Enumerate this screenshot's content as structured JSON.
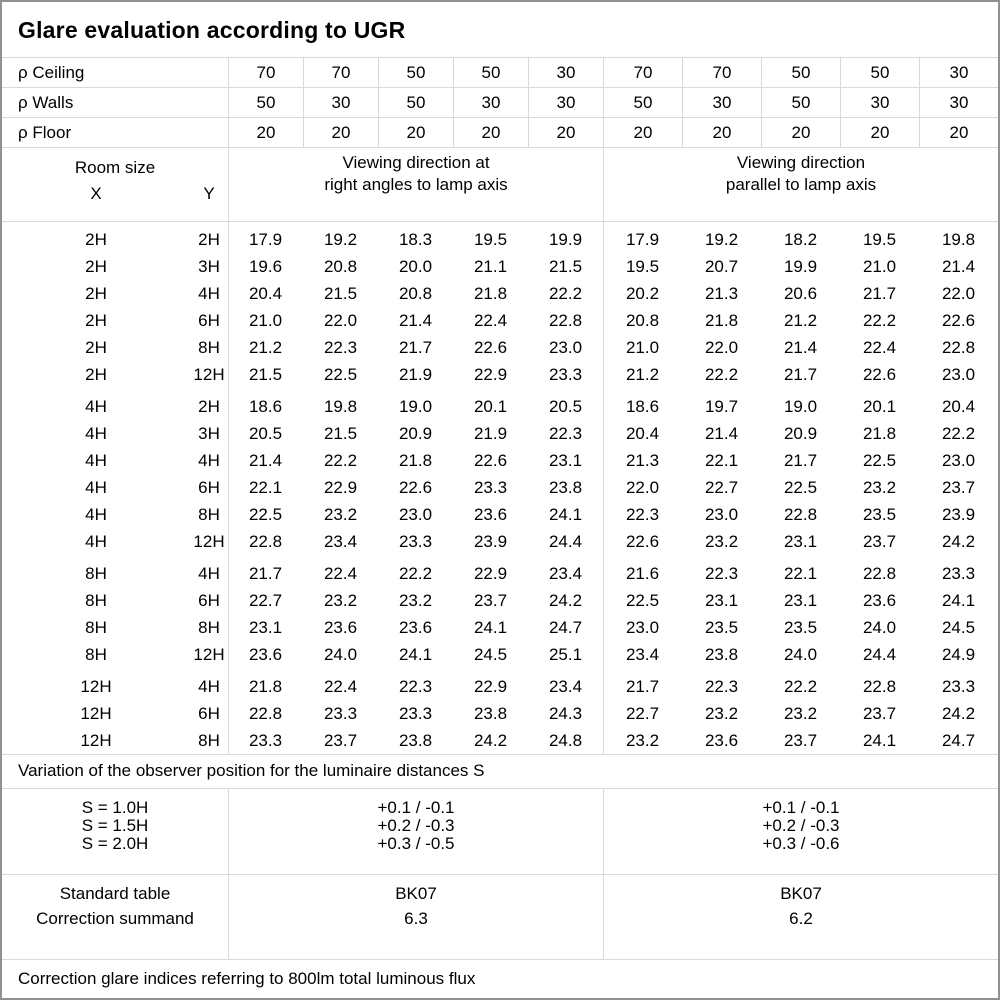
{
  "title": "Glare evaluation according to UGR",
  "reflectance_rows": [
    {
      "label": "ρ Ceiling",
      "values": [
        "70",
        "70",
        "50",
        "50",
        "30",
        "70",
        "70",
        "50",
        "50",
        "30"
      ]
    },
    {
      "label": "ρ Walls",
      "values": [
        "50",
        "30",
        "50",
        "30",
        "30",
        "50",
        "30",
        "50",
        "30",
        "30"
      ]
    },
    {
      "label": "ρ Floor",
      "values": [
        "20",
        "20",
        "20",
        "20",
        "20",
        "20",
        "20",
        "20",
        "20",
        "20"
      ]
    }
  ],
  "header": {
    "room_size_label": "Room size",
    "x_label": "X",
    "y_label": "Y",
    "right_angles_line1": "Viewing direction at",
    "right_angles_line2": "right angles to lamp axis",
    "parallel_line1": "Viewing direction",
    "parallel_line2": "parallel to lamp axis"
  },
  "ugr_groups": [
    {
      "rows": [
        {
          "x": "2H",
          "y": "2H",
          "values": [
            "17.9",
            "19.2",
            "18.3",
            "19.5",
            "19.9",
            "17.9",
            "19.2",
            "18.2",
            "19.5",
            "19.8"
          ]
        },
        {
          "x": "2H",
          "y": "3H",
          "values": [
            "19.6",
            "20.8",
            "20.0",
            "21.1",
            "21.5",
            "19.5",
            "20.7",
            "19.9",
            "21.0",
            "21.4"
          ]
        },
        {
          "x": "2H",
          "y": "4H",
          "values": [
            "20.4",
            "21.5",
            "20.8",
            "21.8",
            "22.2",
            "20.2",
            "21.3",
            "20.6",
            "21.7",
            "22.0"
          ]
        },
        {
          "x": "2H",
          "y": "6H",
          "values": [
            "21.0",
            "22.0",
            "21.4",
            "22.4",
            "22.8",
            "20.8",
            "21.8",
            "21.2",
            "22.2",
            "22.6"
          ]
        },
        {
          "x": "2H",
          "y": "8H",
          "values": [
            "21.2",
            "22.3",
            "21.7",
            "22.6",
            "23.0",
            "21.0",
            "22.0",
            "21.4",
            "22.4",
            "22.8"
          ]
        },
        {
          "x": "2H",
          "y": "12H",
          "values": [
            "21.5",
            "22.5",
            "21.9",
            "22.9",
            "23.3",
            "21.2",
            "22.2",
            "21.7",
            "22.6",
            "23.0"
          ]
        }
      ]
    },
    {
      "rows": [
        {
          "x": "4H",
          "y": "2H",
          "values": [
            "18.6",
            "19.8",
            "19.0",
            "20.1",
            "20.5",
            "18.6",
            "19.7",
            "19.0",
            "20.1",
            "20.4"
          ]
        },
        {
          "x": "4H",
          "y": "3H",
          "values": [
            "20.5",
            "21.5",
            "20.9",
            "21.9",
            "22.3",
            "20.4",
            "21.4",
            "20.9",
            "21.8",
            "22.2"
          ]
        },
        {
          "x": "4H",
          "y": "4H",
          "values": [
            "21.4",
            "22.2",
            "21.8",
            "22.6",
            "23.1",
            "21.3",
            "22.1",
            "21.7",
            "22.5",
            "23.0"
          ]
        },
        {
          "x": "4H",
          "y": "6H",
          "values": [
            "22.1",
            "22.9",
            "22.6",
            "23.3",
            "23.8",
            "22.0",
            "22.7",
            "22.5",
            "23.2",
            "23.7"
          ]
        },
        {
          "x": "4H",
          "y": "8H",
          "values": [
            "22.5",
            "23.2",
            "23.0",
            "23.6",
            "24.1",
            "22.3",
            "23.0",
            "22.8",
            "23.5",
            "23.9"
          ]
        },
        {
          "x": "4H",
          "y": "12H",
          "values": [
            "22.8",
            "23.4",
            "23.3",
            "23.9",
            "24.4",
            "22.6",
            "23.2",
            "23.1",
            "23.7",
            "24.2"
          ]
        }
      ]
    },
    {
      "rows": [
        {
          "x": "8H",
          "y": "4H",
          "values": [
            "21.7",
            "22.4",
            "22.2",
            "22.9",
            "23.4",
            "21.6",
            "22.3",
            "22.1",
            "22.8",
            "23.3"
          ]
        },
        {
          "x": "8H",
          "y": "6H",
          "values": [
            "22.7",
            "23.2",
            "23.2",
            "23.7",
            "24.2",
            "22.5",
            "23.1",
            "23.1",
            "23.6",
            "24.1"
          ]
        },
        {
          "x": "8H",
          "y": "8H",
          "values": [
            "23.1",
            "23.6",
            "23.6",
            "24.1",
            "24.7",
            "23.0",
            "23.5",
            "23.5",
            "24.0",
            "24.5"
          ]
        },
        {
          "x": "8H",
          "y": "12H",
          "values": [
            "23.6",
            "24.0",
            "24.1",
            "24.5",
            "25.1",
            "23.4",
            "23.8",
            "24.0",
            "24.4",
            "24.9"
          ]
        }
      ]
    },
    {
      "rows": [
        {
          "x": "12H",
          "y": "4H",
          "values": [
            "21.8",
            "22.4",
            "22.3",
            "22.9",
            "23.4",
            "21.7",
            "22.3",
            "22.2",
            "22.8",
            "23.3"
          ]
        },
        {
          "x": "12H",
          "y": "6H",
          "values": [
            "22.8",
            "23.3",
            "23.3",
            "23.8",
            "24.3",
            "22.7",
            "23.2",
            "23.2",
            "23.7",
            "24.2"
          ]
        },
        {
          "x": "12H",
          "y": "8H",
          "values": [
            "23.3",
            "23.7",
            "23.8",
            "24.2",
            "24.8",
            "23.2",
            "23.6",
            "23.7",
            "24.1",
            "24.7"
          ]
        }
      ]
    }
  ],
  "variation_note": "Variation of the observer position for the luminaire distances S",
  "s_variation": {
    "labels": [
      "S = 1.0H",
      "S = 1.5H",
      "S = 2.0H"
    ],
    "right_angles": [
      "+0.1 / -0.1",
      "+0.2 / -0.3",
      "+0.3 / -0.5"
    ],
    "parallel": [
      "+0.1 / -0.1",
      "+0.2 / -0.3",
      "+0.3 / -0.6"
    ]
  },
  "standard": {
    "labels": [
      "Standard table",
      "Correction summand"
    ],
    "right_angles": [
      "BK07",
      "6.3"
    ],
    "parallel": [
      "BK07",
      "6.2"
    ]
  },
  "footer_note": "Correction glare indices referring to 800lm total luminous flux"
}
